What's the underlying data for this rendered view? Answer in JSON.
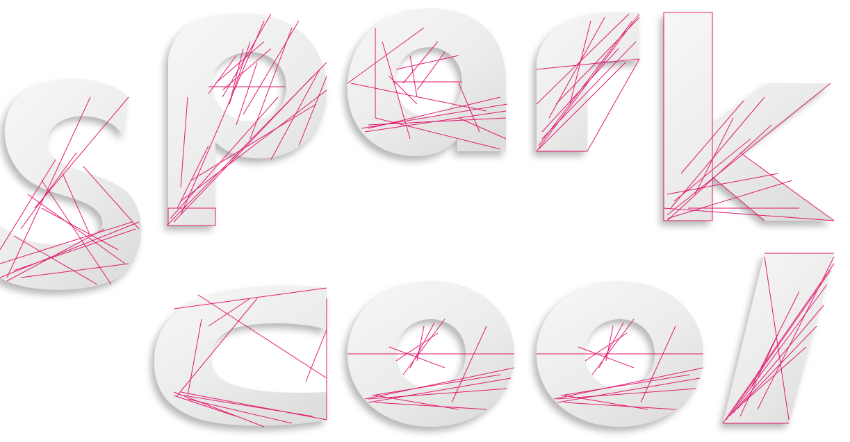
{
  "words": [
    {
      "text": "spark",
      "letters": [
        "s",
        "p",
        "a",
        "r",
        "k"
      ]
    },
    {
      "text": "cool",
      "letters": [
        "c",
        "o",
        "o",
        "l"
      ]
    }
  ],
  "colors": {
    "background": "#ffffff",
    "letter_face": "#ececeb",
    "letter_highlight": "#f7f7f6",
    "letter_shadow": "#8f8f8e",
    "wire": "#e2186f"
  }
}
